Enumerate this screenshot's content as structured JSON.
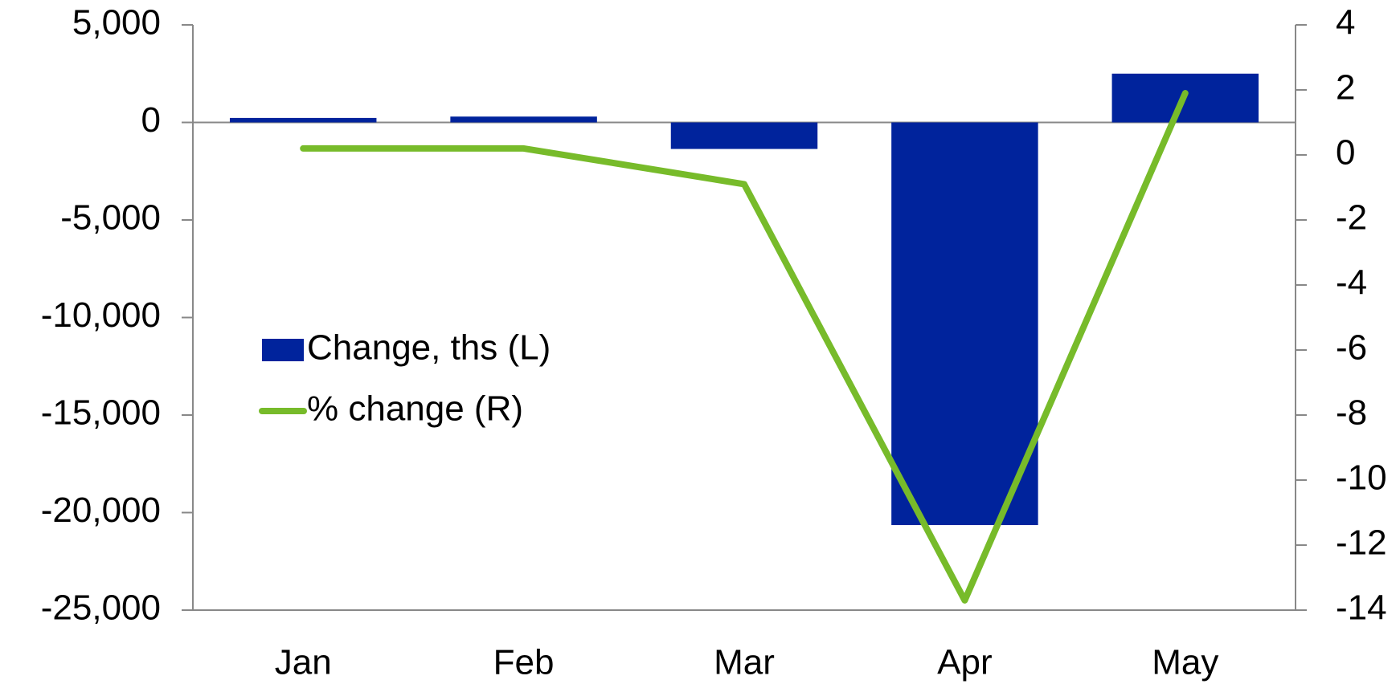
{
  "chart_data": {
    "type": "bar",
    "categories": [
      "Jan",
      "Feb",
      "Mar",
      "Apr",
      "May"
    ],
    "series": [
      {
        "name": "Change, ths (L)",
        "type": "bar",
        "color": "#00239c",
        "values": [
          230,
          300,
          -1360,
          -20640,
          2500
        ]
      },
      {
        "name": "% change (R)",
        "type": "line",
        "color": "#77bb2a",
        "axis": "y2",
        "values": [
          0.2,
          0.2,
          -0.9,
          -13.7,
          1.9
        ]
      }
    ],
    "ylim": [
      -25000,
      5000
    ],
    "yticks": [
      {
        "value": -25000,
        "label": "-25,000"
      },
      {
        "value": -20000,
        "label": "-20,000"
      },
      {
        "value": -15000,
        "label": "-15,000"
      },
      {
        "value": -10000,
        "label": "-10,000"
      },
      {
        "value": -5000,
        "label": "-5,000"
      },
      0,
      {
        "value": 5000,
        "label": "5,000"
      }
    ],
    "y2lim": [
      -14,
      4
    ],
    "y2ticks": [
      -14,
      -12,
      -10,
      -8,
      -6,
      -4,
      -2,
      0,
      2,
      4
    ],
    "legend": "left"
  }
}
